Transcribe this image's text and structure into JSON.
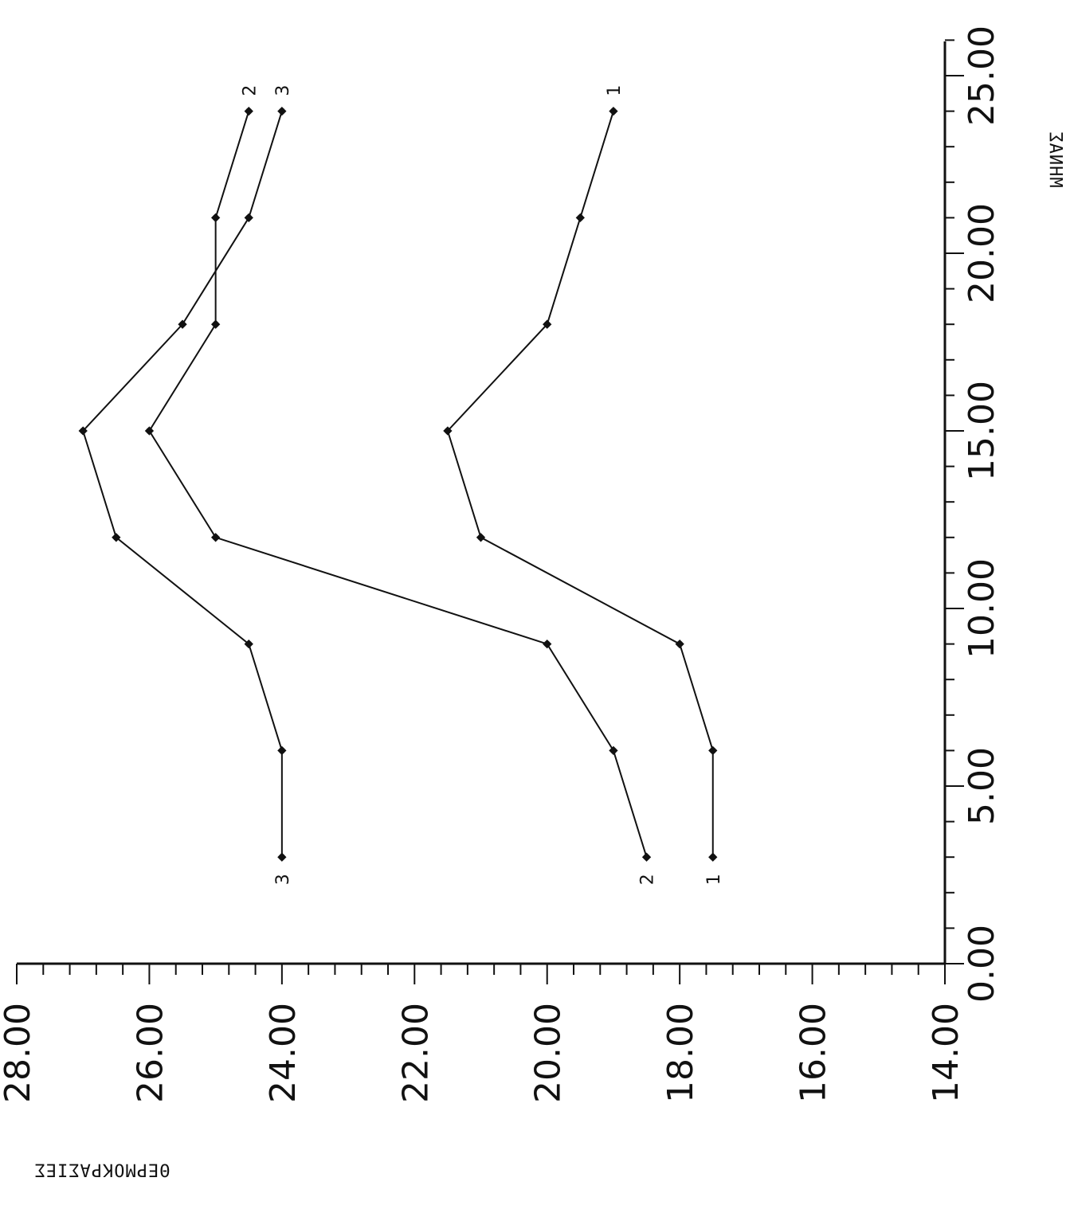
{
  "chart_data": {
    "type": "line",
    "xlabel": "ΜΗΝΑΣ",
    "ylabel": "ΘΕΡΜΟΚΡΑΣΙΕΣ",
    "xlim": [
      0,
      25
    ],
    "ylim": [
      14,
      28
    ],
    "x_ticks": [
      "0.00",
      "5.00",
      "10.00",
      "15.00",
      "20.00",
      "25.00"
    ],
    "y_ticks": [
      "14.00",
      "16.00",
      "18.00",
      "20.00",
      "22.00",
      "24.00",
      "26.00",
      "28.00"
    ],
    "x": [
      3,
      6,
      9,
      12,
      15,
      18,
      21,
      24
    ],
    "series": [
      {
        "name": "1",
        "values": [
          17.5,
          17.5,
          18.0,
          21.0,
          21.5,
          20.0,
          19.5,
          19.0
        ]
      },
      {
        "name": "2",
        "values": [
          18.5,
          19.0,
          20.0,
          25.0,
          26.0,
          25.0,
          25.0,
          24.5
        ]
      },
      {
        "name": "3",
        "values": [
          24.0,
          24.0,
          24.5,
          26.5,
          27.0,
          25.5,
          24.5,
          24.0
        ]
      }
    ],
    "grid": false,
    "orientation": "rotated-90-mirrored",
    "colors": {
      "ink": "#111111",
      "background": "#ffffff"
    }
  }
}
